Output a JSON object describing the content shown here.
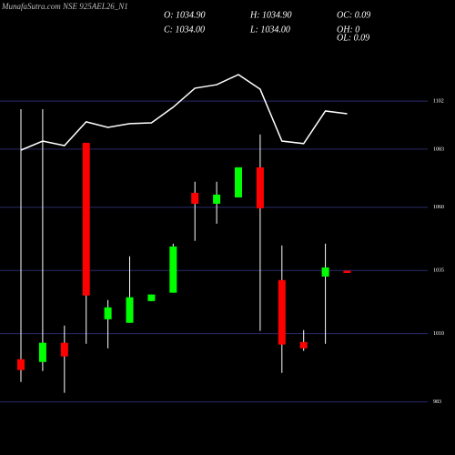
{
  "chart_data": {
    "type": "candlestick",
    "title": "MunafaSutra.com NSE 925AEL26_N1",
    "stats": [
      "O: 1034.90",
      "H: 1034.90",
      "OC: 0.09",
      "C: 1034.00",
      "L: 1034.00",
      "OH: 0",
      "OL: 0.09"
    ],
    "open": [
      999.9,
      998.8,
      1006.4,
      1085.5,
      1015.7,
      1014.3,
      1022.9,
      1026.2,
      1065.7,
      1061.4,
      1063.9,
      1075.8,
      1031.2,
      1006.7,
      1032.6,
      1034.9
    ],
    "high": [
      1098.8,
      1098.8,
      1013.2,
      1085.5,
      1023.3,
      1040.6,
      1025.5,
      1045.6,
      1070.1,
      1070.1,
      1075.8,
      1088.8,
      1044.9,
      1011.4,
      1045.6,
      1034.9
    ],
    "low": [
      990.9,
      995.2,
      986.6,
      1006.0,
      1004.2,
      1014.3,
      1022.9,
      1026.2,
      1046.7,
      1053.5,
      1063.9,
      1011.1,
      994.5,
      1003.2,
      1006.0,
      1034.0
    ],
    "close": [
      995.6,
      1006.4,
      1001.0,
      1025.1,
      1020.4,
      1024.4,
      1025.5,
      1044.5,
      1061.4,
      1065.0,
      1075.8,
      1059.6,
      1005.7,
      1004.2,
      1036.2,
      1034.0
    ],
    "up_color": "#00ff00",
    "down_color": "#ff0000",
    "line": {
      "color": "#ffffff",
      "values": [
        1082.6,
        1086.2,
        1084.4,
        1093.8,
        1091.6,
        1093.1,
        1093.4,
        1099.6,
        1107.1,
        1108.5,
        1112.5,
        1106.7,
        1086.2,
        1085.2,
        1098.1,
        1097.0
      ]
    },
    "ylim": [
      962,
      1142
    ],
    "yticks": [
      1102,
      1083,
      1060,
      1035,
      1010,
      983
    ],
    "grid": true,
    "grid_color": "#2a2a6a"
  }
}
